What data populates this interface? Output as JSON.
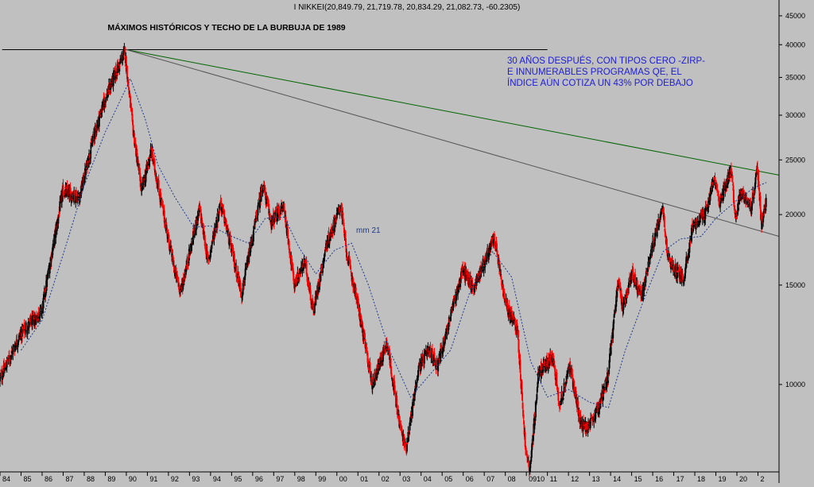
{
  "header": {
    "title": "I NIKKEI(20,849.79, 21,719.78, 20,834.29, 21,082.73, -60.2305)"
  },
  "chart_data": {
    "type": "candlestick",
    "title": "MÁXIMOS HISTÓRICOS Y TECHO DE LA BURBUJA DE 1989",
    "annotation_lines": [
      "30 AÑOS DESPUÉS, CON TIPOS CERO -ZIRP-",
      "E INNUMERABLES PROGRAMAS QE, EL",
      "ÍNDICE AÚN COTIZA UN 43% POR DEBAJO"
    ],
    "ma_label": "mm 21",
    "y_scale": "log",
    "ylim": [
      7000,
      48000
    ],
    "y_ticks": [
      10000,
      15000,
      20000,
      25000,
      30000,
      35000,
      40000,
      45000
    ],
    "x_ticks": [
      "84",
      "85",
      "86",
      "87",
      "88",
      "89",
      "90",
      "91",
      "92",
      "93",
      "94",
      "95",
      "96",
      "97",
      "98",
      "99",
      "00",
      "01",
      "02",
      "03",
      "04",
      "05",
      "06",
      "07",
      "08",
      "0910",
      "11",
      "12",
      "13",
      "14",
      "15",
      "16",
      "17",
      "18",
      "19",
      "20",
      "2"
    ],
    "xlim": [
      1984.0,
      2021.0
    ],
    "price": [
      [
        1984.0,
        10200
      ],
      [
        1985.0,
        12300
      ],
      [
        1986.0,
        13500
      ],
      [
        1987.0,
        22000
      ],
      [
        1987.8,
        21500
      ],
      [
        1988.5,
        27800
      ],
      [
        1989.0,
        32000
      ],
      [
        1989.95,
        38900
      ],
      [
        1990.3,
        29000
      ],
      [
        1990.75,
        22000
      ],
      [
        1991.2,
        26000
      ],
      [
        1992.3,
        16000
      ],
      [
        1992.6,
        14600
      ],
      [
        1993.5,
        20500
      ],
      [
        1993.9,
        16500
      ],
      [
        1994.5,
        21000
      ],
      [
        1995.5,
        14500
      ],
      [
        1996.5,
        22666
      ],
      [
        1996.9,
        19400
      ],
      [
        1997.5,
        20700
      ],
      [
        1998.0,
        15000
      ],
      [
        1998.5,
        16500
      ],
      [
        1998.9,
        13500
      ],
      [
        1999.5,
        17500
      ],
      [
        2000.2,
        20800
      ],
      [
        2000.5,
        17000
      ],
      [
        2001.0,
        14000
      ],
      [
        2001.7,
        10000
      ],
      [
        2002.4,
        11900
      ],
      [
        2003.0,
        8500
      ],
      [
        2003.3,
        7700
      ],
      [
        2003.9,
        10700
      ],
      [
        2004.4,
        11500
      ],
      [
        2004.8,
        10800
      ],
      [
        2006.0,
        16000
      ],
      [
        2006.5,
        14800
      ],
      [
        2007.5,
        18200
      ],
      [
        2008.0,
        14000
      ],
      [
        2008.6,
        12500
      ],
      [
        2009.0,
        7500
      ],
      [
        2009.2,
        7100
      ],
      [
        2009.6,
        10500
      ],
      [
        2010.3,
        11200
      ],
      [
        2010.6,
        9200
      ],
      [
        2011.1,
        10800
      ],
      [
        2011.6,
        8500
      ],
      [
        2012.0,
        8400
      ],
      [
        2012.4,
        9000
      ],
      [
        2012.9,
        10400
      ],
      [
        2013.4,
        15600
      ],
      [
        2013.6,
        13500
      ],
      [
        2014.0,
        15800
      ],
      [
        2014.5,
        14300
      ],
      [
        2015.0,
        17500
      ],
      [
        2015.5,
        20900
      ],
      [
        2015.7,
        17200
      ],
      [
        2016.0,
        16000
      ],
      [
        2016.5,
        15500
      ],
      [
        2016.9,
        19000
      ],
      [
        2017.5,
        20000
      ],
      [
        2017.9,
        23000
      ],
      [
        2018.2,
        21000
      ],
      [
        2018.75,
        24200
      ],
      [
        2018.95,
        19400
      ],
      [
        2019.2,
        22000
      ],
      [
        2019.7,
        20600
      ],
      [
        2020.0,
        24100
      ],
      [
        2020.2,
        19000
      ],
      [
        2020.4,
        21100
      ]
    ],
    "ma21": [
      [
        1985.0,
        11500
      ],
      [
        1986.0,
        13000
      ],
      [
        1987.0,
        17000
      ],
      [
        1988.0,
        22500
      ],
      [
        1989.0,
        28000
      ],
      [
        1990.2,
        34800
      ],
      [
        1990.9,
        29500
      ],
      [
        1991.5,
        24500
      ],
      [
        1992.3,
        21500
      ],
      [
        1993.2,
        19000
      ],
      [
        1994.0,
        19100
      ],
      [
        1995.0,
        18300
      ],
      [
        1995.8,
        17800
      ],
      [
        1996.6,
        19700
      ],
      [
        1997.5,
        19800
      ],
      [
        1998.2,
        17500
      ],
      [
        1999.0,
        15700
      ],
      [
        1999.9,
        17300
      ],
      [
        2000.7,
        17800
      ],
      [
        2001.5,
        15000
      ],
      [
        2002.5,
        11500
      ],
      [
        2003.5,
        9500
      ],
      [
        2004.5,
        10500
      ],
      [
        2005.4,
        11500
      ],
      [
        2006.3,
        14500
      ],
      [
        2007.4,
        17200
      ],
      [
        2008.3,
        15500
      ],
      [
        2009.2,
        11000
      ],
      [
        2010.0,
        9500
      ],
      [
        2011.0,
        9800
      ],
      [
        2012.0,
        9300
      ],
      [
        2012.9,
        9100
      ],
      [
        2013.7,
        11500
      ],
      [
        2014.6,
        14200
      ],
      [
        2015.5,
        17200
      ],
      [
        2016.3,
        18100
      ],
      [
        2017.3,
        18300
      ],
      [
        2018.0,
        19700
      ],
      [
        2019.0,
        21200
      ],
      [
        2019.8,
        22300
      ],
      [
        2020.4,
        22800
      ]
    ],
    "lines": [
      {
        "name": "techo-1989",
        "points": [
          [
            1984.1,
            39200
          ],
          [
            2010.0,
            39200
          ]
        ],
        "color": "#000000"
      },
      {
        "name": "trend-green",
        "points": [
          [
            1990.0,
            39200
          ],
          [
            2021.0,
            23500
          ]
        ],
        "color": "#006400"
      },
      {
        "name": "trend-gray",
        "points": [
          [
            1990.0,
            39200
          ],
          [
            2021.0,
            18300
          ]
        ],
        "color": "#555555"
      }
    ],
    "colors": {
      "up": "#000000",
      "down": "#ff0000",
      "ma": "#1f3a8a",
      "annotation": "#1d1dd6"
    }
  }
}
